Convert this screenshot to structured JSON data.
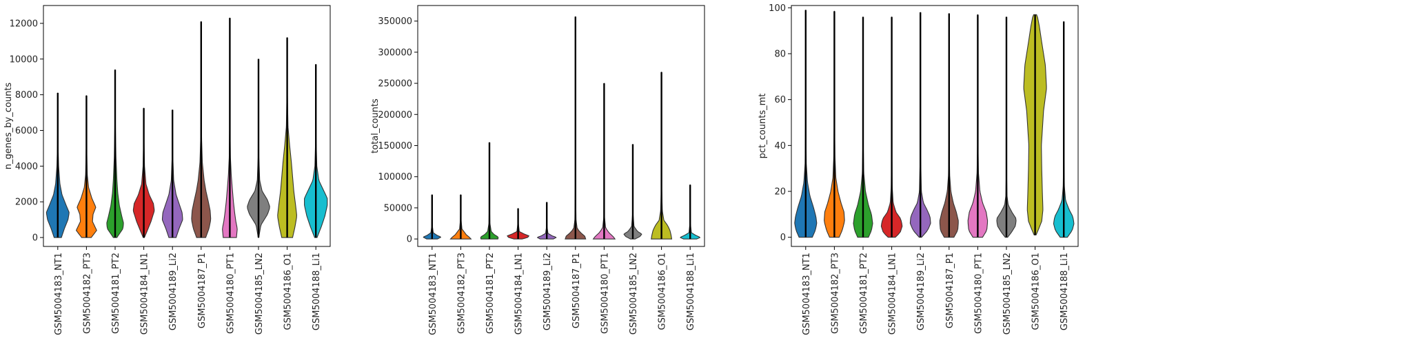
{
  "chart_data": [
    {
      "type": "violin",
      "ylabel": "n_genes_by_counts",
      "xlabel": "",
      "ylim": [
        -500,
        13000
      ],
      "yticks": [
        0,
        2000,
        4000,
        6000,
        8000,
        10000,
        12000
      ],
      "categories": [
        "GSM5004183_NT1",
        "GSM5004182_PT3",
        "GSM5004181_PT2",
        "GSM5004184_LN1",
        "GSM5004189_Li2",
        "GSM5004187_P1",
        "GSM5004180_PT1",
        "GSM5004185_LN2",
        "GSM5004186_O1",
        "GSM5004188_Li1"
      ],
      "colors": [
        "#1f77b4",
        "#ff7f0e",
        "#2ca02c",
        "#d62728",
        "#9467bd",
        "#8c564b",
        "#e377c2",
        "#7f7f7f",
        "#bcbd22",
        "#17becf"
      ],
      "max_values": [
        8100,
        7950,
        9400,
        7250,
        7150,
        12100,
        12300,
        10000,
        11200,
        9700
      ],
      "shapes": [
        [
          [
            0,
            0.3
          ],
          [
            500,
            0.55
          ],
          [
            1000,
            0.85
          ],
          [
            1400,
            0.95
          ],
          [
            1800,
            0.7
          ],
          [
            2400,
            0.35
          ],
          [
            3000,
            0.18
          ],
          [
            4000,
            0.07
          ],
          [
            5000,
            0.03
          ],
          [
            6000,
            0.012
          ],
          [
            8100,
            0.002
          ]
        ],
        [
          [
            0,
            0.4
          ],
          [
            400,
            0.85
          ],
          [
            900,
            0.5
          ],
          [
            1300,
            0.55
          ],
          [
            1700,
            0.78
          ],
          [
            2200,
            0.45
          ],
          [
            2800,
            0.18
          ],
          [
            3500,
            0.07
          ],
          [
            5000,
            0.02
          ],
          [
            7950,
            0.002
          ]
        ],
        [
          [
            0,
            0.15
          ],
          [
            500,
            0.65
          ],
          [
            800,
            0.7
          ],
          [
            1200,
            0.55
          ],
          [
            1800,
            0.35
          ],
          [
            2500,
            0.22
          ],
          [
            3200,
            0.15
          ],
          [
            4500,
            0.07
          ],
          [
            6000,
            0.03
          ],
          [
            7500,
            0.01
          ],
          [
            9400,
            0.002
          ]
        ],
        [
          [
            0,
            0.05
          ],
          [
            400,
            0.3
          ],
          [
            900,
            0.6
          ],
          [
            1500,
            0.88
          ],
          [
            1900,
            0.8
          ],
          [
            2400,
            0.45
          ],
          [
            3000,
            0.18
          ],
          [
            4000,
            0.06
          ],
          [
            5500,
            0.015
          ],
          [
            7250,
            0.002
          ]
        ],
        [
          [
            0,
            0.3
          ],
          [
            500,
            0.55
          ],
          [
            1000,
            0.85
          ],
          [
            1400,
            0.8
          ],
          [
            1800,
            0.6
          ],
          [
            2400,
            0.3
          ],
          [
            3200,
            0.1
          ],
          [
            4500,
            0.03
          ],
          [
            7150,
            0.002
          ]
        ],
        [
          [
            0,
            0.38
          ],
          [
            500,
            0.65
          ],
          [
            1000,
            0.8
          ],
          [
            1500,
            0.75
          ],
          [
            2000,
            0.6
          ],
          [
            2600,
            0.4
          ],
          [
            3200,
            0.25
          ],
          [
            4200,
            0.1
          ],
          [
            5500,
            0.04
          ],
          [
            8000,
            0.01
          ],
          [
            12100,
            0.002
          ]
        ],
        [
          [
            0,
            0.55
          ],
          [
            500,
            0.62
          ],
          [
            900,
            0.5
          ],
          [
            1400,
            0.4
          ],
          [
            2000,
            0.3
          ],
          [
            2800,
            0.2
          ],
          [
            3500,
            0.12
          ],
          [
            4500,
            0.05
          ],
          [
            6000,
            0.02
          ],
          [
            12300,
            0.002
          ]
        ],
        [
          [
            0,
            0.02
          ],
          [
            700,
            0.2
          ],
          [
            1300,
            0.75
          ],
          [
            1700,
            0.95
          ],
          [
            2100,
            0.75
          ],
          [
            2600,
            0.3
          ],
          [
            3200,
            0.1
          ],
          [
            4500,
            0.03
          ],
          [
            10000,
            0.002
          ]
        ],
        [
          [
            0,
            0.45
          ],
          [
            600,
            0.65
          ],
          [
            1200,
            0.8
          ],
          [
            1800,
            0.7
          ],
          [
            2600,
            0.55
          ],
          [
            3400,
            0.45
          ],
          [
            4200,
            0.35
          ],
          [
            5200,
            0.2
          ],
          [
            6200,
            0.07
          ],
          [
            8000,
            0.02
          ],
          [
            11200,
            0.002
          ]
        ],
        [
          [
            0,
            0.1
          ],
          [
            600,
            0.45
          ],
          [
            1200,
            0.75
          ],
          [
            1800,
            0.95
          ],
          [
            2200,
            0.95
          ],
          [
            2700,
            0.6
          ],
          [
            3200,
            0.25
          ],
          [
            4000,
            0.08
          ],
          [
            5500,
            0.02
          ],
          [
            9700,
            0.002
          ]
        ]
      ]
    },
    {
      "type": "violin",
      "ylabel": "total_counts",
      "xlabel": "",
      "ylim": [
        -12000,
        375000
      ],
      "yticks": [
        0,
        50000,
        100000,
        150000,
        200000,
        250000,
        300000,
        350000
      ],
      "categories": [
        "GSM5004183_NT1",
        "GSM5004182_PT3",
        "GSM5004181_PT2",
        "GSM5004184_LN1",
        "GSM5004189_Li2",
        "GSM5004187_P1",
        "GSM5004180_PT1",
        "GSM5004185_LN2",
        "GSM5004186_O1",
        "GSM5004188_Li1"
      ],
      "colors": [
        "#1f77b4",
        "#ff7f0e",
        "#2ca02c",
        "#d62728",
        "#9467bd",
        "#8c564b",
        "#e377c2",
        "#7f7f7f",
        "#bcbd22",
        "#17becf"
      ],
      "max_values": [
        71000,
        71000,
        155000,
        49000,
        59000,
        357000,
        250000,
        152000,
        268000,
        87000
      ],
      "shapes": [
        [
          [
            0,
            0.45
          ],
          [
            3000,
            0.75
          ],
          [
            6000,
            0.4
          ],
          [
            10000,
            0.1
          ],
          [
            20000,
            0.03
          ],
          [
            71000,
            0.002
          ]
        ],
        [
          [
            0,
            0.85
          ],
          [
            3000,
            0.7
          ],
          [
            7000,
            0.45
          ],
          [
            11000,
            0.3
          ],
          [
            16000,
            0.1
          ],
          [
            30000,
            0.03
          ],
          [
            71000,
            0.002
          ]
        ],
        [
          [
            0,
            0.7
          ],
          [
            3000,
            0.75
          ],
          [
            7000,
            0.4
          ],
          [
            12000,
            0.15
          ],
          [
            25000,
            0.04
          ],
          [
            60000,
            0.01
          ],
          [
            155000,
            0.002
          ]
        ],
        [
          [
            0,
            0.35
          ],
          [
            2500,
            0.8
          ],
          [
            5000,
            0.9
          ],
          [
            8000,
            0.5
          ],
          [
            12000,
            0.1
          ],
          [
            25000,
            0.02
          ],
          [
            49000,
            0.002
          ]
        ],
        [
          [
            0,
            0.55
          ],
          [
            2500,
            0.8
          ],
          [
            5000,
            0.45
          ],
          [
            9000,
            0.1
          ],
          [
            20000,
            0.02
          ],
          [
            59000,
            0.002
          ]
        ],
        [
          [
            0,
            0.85
          ],
          [
            4000,
            0.8
          ],
          [
            9000,
            0.5
          ],
          [
            16000,
            0.15
          ],
          [
            30000,
            0.05
          ],
          [
            80000,
            0.015
          ],
          [
            357000,
            0.002
          ]
        ],
        [
          [
            0,
            0.9
          ],
          [
            4000,
            0.75
          ],
          [
            10000,
            0.4
          ],
          [
            18000,
            0.12
          ],
          [
            35000,
            0.03
          ],
          [
            100000,
            0.01
          ],
          [
            250000,
            0.002
          ]
        ],
        [
          [
            0,
            0.2
          ],
          [
            4000,
            0.6
          ],
          [
            8000,
            0.75
          ],
          [
            12000,
            0.4
          ],
          [
            20000,
            0.1
          ],
          [
            40000,
            0.02
          ],
          [
            152000,
            0.002
          ]
        ],
        [
          [
            0,
            0.85
          ],
          [
            6000,
            0.8
          ],
          [
            14000,
            0.7
          ],
          [
            22000,
            0.5
          ],
          [
            30000,
            0.2
          ],
          [
            45000,
            0.07
          ],
          [
            80000,
            0.02
          ],
          [
            268000,
            0.002
          ]
        ],
        [
          [
            0,
            0.55
          ],
          [
            2500,
            0.85
          ],
          [
            6000,
            0.45
          ],
          [
            10000,
            0.1
          ],
          [
            25000,
            0.02
          ],
          [
            87000,
            0.002
          ]
        ]
      ]
    },
    {
      "type": "violin",
      "ylabel": "pct_counts_mt",
      "xlabel": "",
      "ylim": [
        -4,
        101
      ],
      "yticks": [
        0,
        20,
        40,
        60,
        80,
        100
      ],
      "categories": [
        "GSM5004183_NT1",
        "GSM5004182_PT3",
        "GSM5004181_PT2",
        "GSM5004184_LN1",
        "GSM5004189_Li2",
        "GSM5004187_P1",
        "GSM5004180_PT1",
        "GSM5004185_LN2",
        "GSM5004186_O1",
        "GSM5004188_Li1"
      ],
      "colors": [
        "#1f77b4",
        "#ff7f0e",
        "#2ca02c",
        "#d62728",
        "#9467bd",
        "#8c564b",
        "#e377c2",
        "#7f7f7f",
        "#bcbd22",
        "#17becf"
      ],
      "max_values": [
        99,
        98.5,
        96,
        96,
        98,
        97.5,
        97,
        96,
        97,
        94
      ],
      "shapes": [
        [
          [
            0,
            0.55
          ],
          [
            3,
            0.8
          ],
          [
            6,
            0.92
          ],
          [
            9,
            0.85
          ],
          [
            13,
            0.65
          ],
          [
            18,
            0.35
          ],
          [
            24,
            0.15
          ],
          [
            32,
            0.05
          ],
          [
            50,
            0.015
          ],
          [
            99,
            0.002
          ]
        ],
        [
          [
            0,
            0.4
          ],
          [
            3,
            0.65
          ],
          [
            7,
            0.85
          ],
          [
            11,
            0.8
          ],
          [
            15,
            0.55
          ],
          [
            20,
            0.3
          ],
          [
            26,
            0.12
          ],
          [
            35,
            0.05
          ],
          [
            50,
            0.015
          ],
          [
            98.5,
            0.002
          ]
        ],
        [
          [
            0,
            0.45
          ],
          [
            3,
            0.7
          ],
          [
            6,
            0.8
          ],
          [
            10,
            0.7
          ],
          [
            14,
            0.45
          ],
          [
            20,
            0.2
          ],
          [
            28,
            0.06
          ],
          [
            40,
            0.02
          ],
          [
            96,
            0.002
          ]
        ],
        [
          [
            0,
            0.3
          ],
          [
            2,
            0.7
          ],
          [
            5,
            0.88
          ],
          [
            8,
            0.75
          ],
          [
            11,
            0.35
          ],
          [
            15,
            0.12
          ],
          [
            22,
            0.04
          ],
          [
            40,
            0.01
          ],
          [
            96,
            0.002
          ]
        ],
        [
          [
            0,
            0.1
          ],
          [
            3,
            0.6
          ],
          [
            6,
            0.85
          ],
          [
            9,
            0.8
          ],
          [
            12,
            0.55
          ],
          [
            15,
            0.25
          ],
          [
            20,
            0.08
          ],
          [
            35,
            0.02
          ],
          [
            98,
            0.002
          ]
        ],
        [
          [
            0,
            0.4
          ],
          [
            3,
            0.72
          ],
          [
            7,
            0.78
          ],
          [
            11,
            0.6
          ],
          [
            15,
            0.35
          ],
          [
            20,
            0.15
          ],
          [
            27,
            0.05
          ],
          [
            40,
            0.015
          ],
          [
            97.5,
            0.002
          ]
        ],
        [
          [
            0,
            0.4
          ],
          [
            3,
            0.75
          ],
          [
            7,
            0.82
          ],
          [
            11,
            0.7
          ],
          [
            15,
            0.4
          ],
          [
            20,
            0.18
          ],
          [
            28,
            0.06
          ],
          [
            40,
            0.02
          ],
          [
            97,
            0.002
          ]
        ],
        [
          [
            0,
            0.1
          ],
          [
            2,
            0.4
          ],
          [
            5,
            0.75
          ],
          [
            8,
            0.82
          ],
          [
            11,
            0.45
          ],
          [
            14,
            0.15
          ],
          [
            18,
            0.05
          ],
          [
            30,
            0.01
          ],
          [
            96,
            0.002
          ]
        ],
        [
          [
            1,
            0.08
          ],
          [
            3,
            0.25
          ],
          [
            7,
            0.55
          ],
          [
            12,
            0.65
          ],
          [
            20,
            0.6
          ],
          [
            30,
            0.55
          ],
          [
            40,
            0.52
          ],
          [
            55,
            0.7
          ],
          [
            65,
            0.95
          ],
          [
            75,
            0.85
          ],
          [
            85,
            0.55
          ],
          [
            92,
            0.35
          ],
          [
            96,
            0.2
          ],
          [
            97,
            0.12
          ]
        ],
        [
          [
            0,
            0.3
          ],
          [
            3,
            0.7
          ],
          [
            6,
            0.85
          ],
          [
            9,
            0.75
          ],
          [
            12,
            0.45
          ],
          [
            16,
            0.15
          ],
          [
            22,
            0.05
          ],
          [
            35,
            0.01
          ],
          [
            94,
            0.002
          ]
        ]
      ]
    }
  ]
}
